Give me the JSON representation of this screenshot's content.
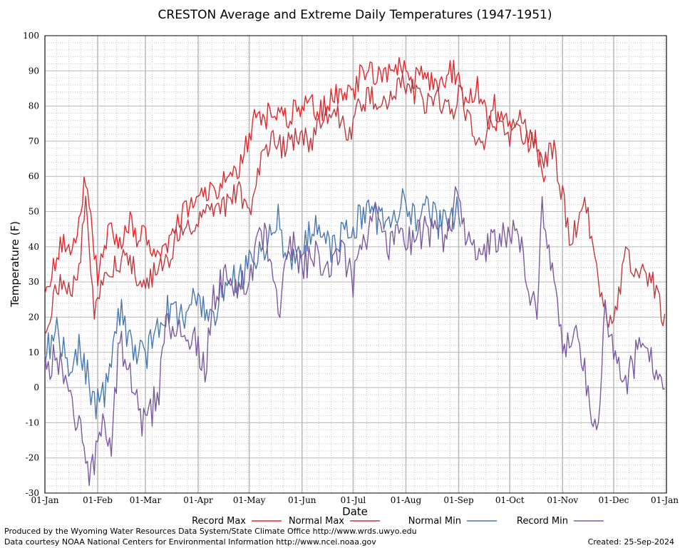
{
  "chart_data": {
    "type": "line",
    "title": "CRESTON Average and Extreme Daily Temperatures (1947-1951)",
    "xlabel": "Date",
    "ylabel": "Temperature (F)",
    "ylim": [
      -30,
      100
    ],
    "yticks": [
      100,
      90,
      80,
      70,
      60,
      50,
      40,
      30,
      20,
      10,
      0,
      -10,
      -20,
      -30
    ],
    "xticks": [
      "01-Jan",
      "01-Feb",
      "01-Mar",
      "01-Apr",
      "01-May",
      "01-Jun",
      "01-Jul",
      "01-Aug",
      "01-Sep",
      "01-Oct",
      "01-Nov",
      "01-Dec",
      "01-Jan"
    ],
    "grid": true,
    "legend_position": "bottom",
    "colors": {
      "record_max": "#e8262b",
      "normal_max": "#c0393f",
      "normal_min": "#4a78b0",
      "record_min": "#7b5aa0",
      "major_grid": "#b8b8b8",
      "minor_grid": "#c8c8c8"
    },
    "series": [
      {
        "name": "Record Max",
        "color": "#e8262b",
        "day": [
          1,
          10,
          20,
          25,
          32,
          38,
          45,
          52,
          55,
          60,
          65,
          72,
          80,
          92,
          100,
          108,
          115,
          121,
          125,
          130,
          135,
          142,
          150,
          157,
          162,
          168,
          175,
          182,
          186,
          190,
          195,
          200,
          205,
          210,
          213,
          218,
          225,
          230,
          235,
          240,
          244,
          248,
          255,
          262,
          270,
          278,
          285,
          290,
          295
        ],
        "values": [
          28,
          40,
          42,
          60,
          30,
          45,
          40,
          48,
          40,
          45,
          38,
          40,
          48,
          55,
          55,
          59,
          62,
          71,
          80,
          76,
          80,
          76,
          80,
          81,
          78,
          82,
          84,
          82,
          89,
          91,
          88,
          90,
          88,
          91,
          90,
          88,
          88,
          86,
          88,
          90,
          89,
          80,
          85,
          75,
          77,
          72,
          70,
          70,
          58
        ]
      },
      {
        "name": "Normal Max",
        "color": "#c0393f",
        "day": [
          1,
          10,
          20,
          25,
          30,
          35,
          42,
          50,
          58,
          65,
          72,
          80,
          92,
          100,
          108,
          115,
          122,
          128,
          135,
          142,
          150,
          157,
          165,
          172,
          180,
          186,
          192,
          200,
          205,
          212,
          218,
          225,
          232,
          240,
          245,
          250,
          258,
          265,
          272,
          280,
          285,
          292,
          300,
          310,
          318,
          325,
          330,
          335,
          342,
          350,
          358,
          365
        ],
        "values": [
          18,
          30,
          28,
          55,
          22,
          30,
          35,
          38,
          28,
          32,
          35,
          45,
          48,
          50,
          52,
          56,
          50,
          65,
          70,
          68,
          72,
          70,
          76,
          78,
          72,
          80,
          83,
          80,
          85,
          86,
          84,
          80,
          82,
          78,
          84,
          75,
          68,
          80,
          70,
          76,
          72,
          65,
          67,
          41,
          54,
          33,
          22,
          18,
          38,
          33,
          30,
          18
        ]
      },
      {
        "name": "Normal Min",
        "color": "#4a78b0",
        "day": [
          1,
          8,
          15,
          22,
          30,
          38,
          45,
          52,
          60,
          65,
          72,
          80,
          90,
          100,
          108,
          115,
          122,
          130,
          138,
          145,
          152,
          160,
          168,
          175,
          182,
          188,
          195,
          202,
          210,
          218,
          225,
          232,
          240,
          245
        ],
        "values": [
          10,
          15,
          5,
          12,
          -5,
          0,
          22,
          10,
          8,
          15,
          22,
          20,
          25,
          20,
          30,
          30,
          35,
          38,
          48,
          33,
          40,
          45,
          40,
          42,
          45,
          50,
          48,
          46,
          53,
          48,
          50,
          47,
          48,
          50
        ]
      },
      {
        "name": "Record Min",
        "color": "#7b5aa0",
        "day": [
          1,
          8,
          15,
          22,
          28,
          34,
          40,
          45,
          50,
          55,
          60,
          68,
          72,
          80,
          88,
          95,
          100,
          108,
          115,
          122,
          130,
          138,
          145,
          152,
          160,
          168,
          175,
          182,
          188,
          195,
          202,
          210,
          218,
          225,
          232,
          240,
          243,
          248,
          255,
          262,
          270,
          278,
          285,
          290,
          293,
          298,
          305,
          312,
          318,
          325,
          330,
          336,
          342,
          350,
          358,
          362,
          365
        ],
        "values": [
          5,
          10,
          -5,
          -10,
          -26,
          -10,
          -15,
          15,
          5,
          -5,
          -12,
          0,
          20,
          15,
          15,
          5,
          25,
          32,
          28,
          34,
          45,
          22,
          42,
          35,
          38,
          30,
          40,
          30,
          42,
          48,
          40,
          44,
          42,
          45,
          42,
          44,
          57,
          45,
          35,
          40,
          42,
          48,
          30,
          20,
          50,
          38,
          10,
          15,
          5,
          -16,
          20,
          10,
          0,
          12,
          8,
          0,
          -5
        ]
      }
    ],
    "footer": {
      "left1": "Produced by the Wyoming Water Resources Data System/State Climate Office http://www.wrds.uwyo.edu",
      "left2": "Data courtesy NOAA National Centers for Environmental Information http://www.ncei.noaa.gov",
      "right": "Created: 25-Sep-2024"
    }
  }
}
